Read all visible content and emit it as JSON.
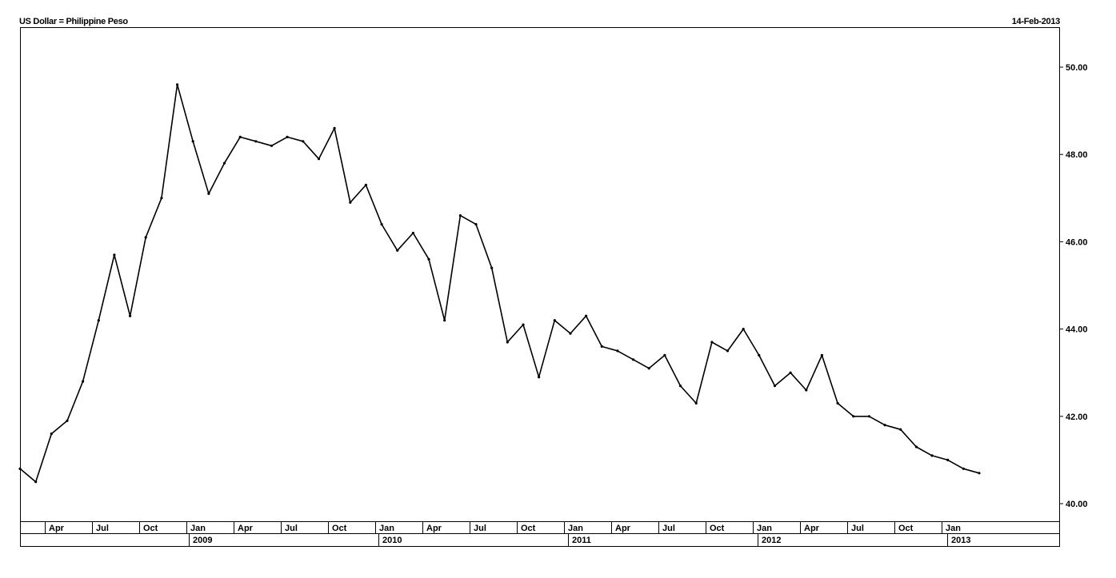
{
  "chart_data": {
    "type": "line",
    "title": "US Dollar = Philippine Peso",
    "date": "14-Feb-2013",
    "y_range": [
      39.5,
      50.9
    ],
    "y_ticks": [
      "40.00",
      "42.00",
      "44.00",
      "46.00",
      "48.00",
      "50.00"
    ],
    "grid": false,
    "legend": "none",
    "month_labels": [
      "Apr",
      "Jul",
      "Oct",
      "Jan",
      "Apr",
      "Jul",
      "Oct",
      "Jan",
      "Apr",
      "Jul",
      "Oct",
      "Jan",
      "Apr",
      "Jul",
      "Oct",
      "Jan",
      "Apr",
      "Jul",
      "Oct",
      "Jan"
    ],
    "year_labels": [
      "2009",
      "2010",
      "2011",
      "2012",
      "2013"
    ],
    "series": [
      {
        "x": [
          "2008-01",
          "2008-02",
          "2008-03",
          "2008-04",
          "2008-05",
          "2008-06",
          "2008-07",
          "2008-08",
          "2008-09",
          "2008-10",
          "2008-11",
          "2008-12",
          "2009-01",
          "2009-02",
          "2009-03",
          "2009-04",
          "2009-05",
          "2009-06",
          "2009-07",
          "2009-08",
          "2009-09",
          "2009-10",
          "2009-11",
          "2009-12",
          "2010-01",
          "2010-02",
          "2010-03",
          "2010-04",
          "2010-05",
          "2010-06",
          "2010-07",
          "2010-08",
          "2010-09",
          "2010-10",
          "2010-11",
          "2010-12",
          "2011-01",
          "2011-02",
          "2011-03",
          "2011-04",
          "2011-05",
          "2011-06",
          "2011-07",
          "2011-08",
          "2011-09",
          "2011-10",
          "2011-11",
          "2011-12",
          "2012-01",
          "2012-02",
          "2012-03",
          "2012-04",
          "2012-05",
          "2012-06",
          "2012-07",
          "2012-08",
          "2012-09",
          "2012-10",
          "2012-11",
          "2012-12",
          "2013-01",
          "2013-02"
        ],
        "values": [
          40.8,
          40.5,
          41.6,
          41.9,
          42.8,
          44.2,
          45.7,
          44.3,
          46.1,
          47.0,
          49.6,
          48.3,
          47.1,
          47.8,
          48.4,
          48.3,
          48.2,
          48.4,
          48.3,
          47.9,
          48.6,
          46.9,
          47.3,
          46.4,
          45.8,
          46.2,
          45.6,
          44.2,
          46.6,
          46.4,
          45.4,
          43.7,
          44.1,
          42.9,
          44.2,
          43.9,
          44.3,
          43.6,
          43.5,
          43.3,
          43.1,
          43.4,
          42.7,
          42.3,
          43.7,
          43.5,
          44.0,
          43.4,
          42.7,
          43.0,
          42.6,
          43.4,
          42.3,
          42.0,
          42.0,
          41.8,
          41.7,
          41.3,
          41.1,
          41.0,
          40.8,
          40.7
        ]
      }
    ]
  }
}
